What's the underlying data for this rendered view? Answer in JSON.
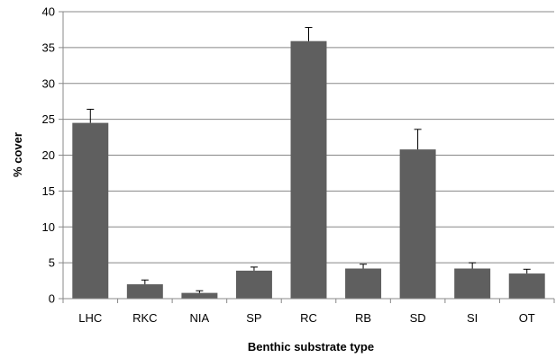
{
  "chart_data": {
    "type": "bar",
    "title": "",
    "xlabel": "Benthic substrate type",
    "ylabel": "% cover",
    "categories": [
      "LHC",
      "RKC",
      "NIA",
      "SP",
      "RC",
      "RB",
      "SD",
      "SI",
      "OT"
    ],
    "values": [
      24.5,
      2.0,
      0.8,
      3.9,
      35.9,
      4.2,
      20.8,
      4.2,
      3.5
    ],
    "error_bars": [
      1.9,
      0.6,
      0.3,
      0.5,
      1.9,
      0.6,
      2.8,
      0.8,
      0.6
    ],
    "ylim": [
      0,
      40
    ],
    "yticks": [
      0,
      5,
      10,
      15,
      20,
      25,
      30,
      35,
      40
    ],
    "grid": true,
    "colors": {
      "bar": "#5f5f5f",
      "grid": "#888888",
      "axis": "#888888",
      "error": "#000000"
    }
  }
}
